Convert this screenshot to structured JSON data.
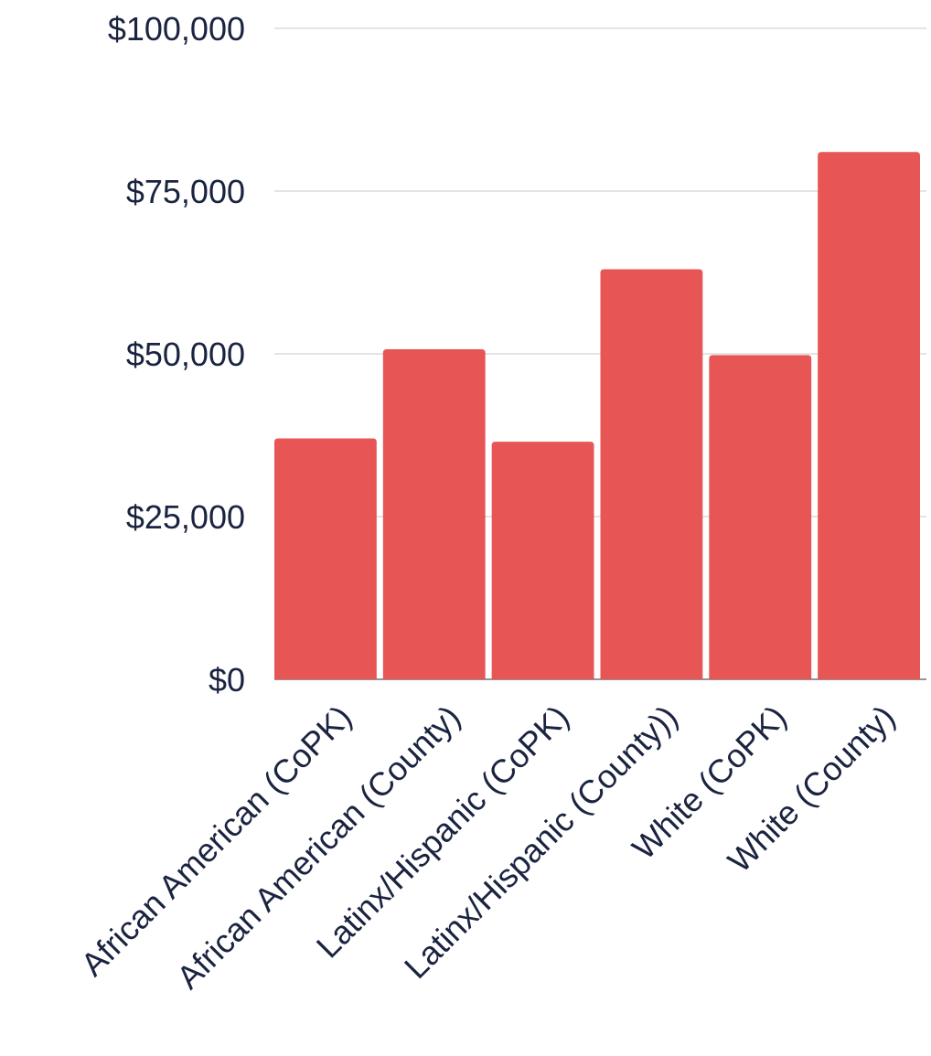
{
  "chart_data": {
    "type": "bar",
    "title": "",
    "xlabel": "",
    "ylabel": "",
    "categories": [
      "African American (CoPK)",
      "African American (County)",
      "Latinx/Hispanic (CoPK)",
      "Latinx/Hispanic (County))",
      "White (CoPK)",
      "White (County)"
    ],
    "values": [
      37000,
      50700,
      36500,
      63000,
      49800,
      81000
    ],
    "ylim": [
      0,
      100000
    ],
    "yticks": [
      0,
      25000,
      50000,
      75000,
      100000
    ],
    "ytick_labels": [
      "$0",
      "$25,000",
      "$50,000",
      "$75,000",
      "$100,000"
    ],
    "grid": true,
    "legend": "none",
    "colors": {
      "bar": "#e85555",
      "grid": "#c8c8c8",
      "axis_text": "#1a2340"
    }
  }
}
